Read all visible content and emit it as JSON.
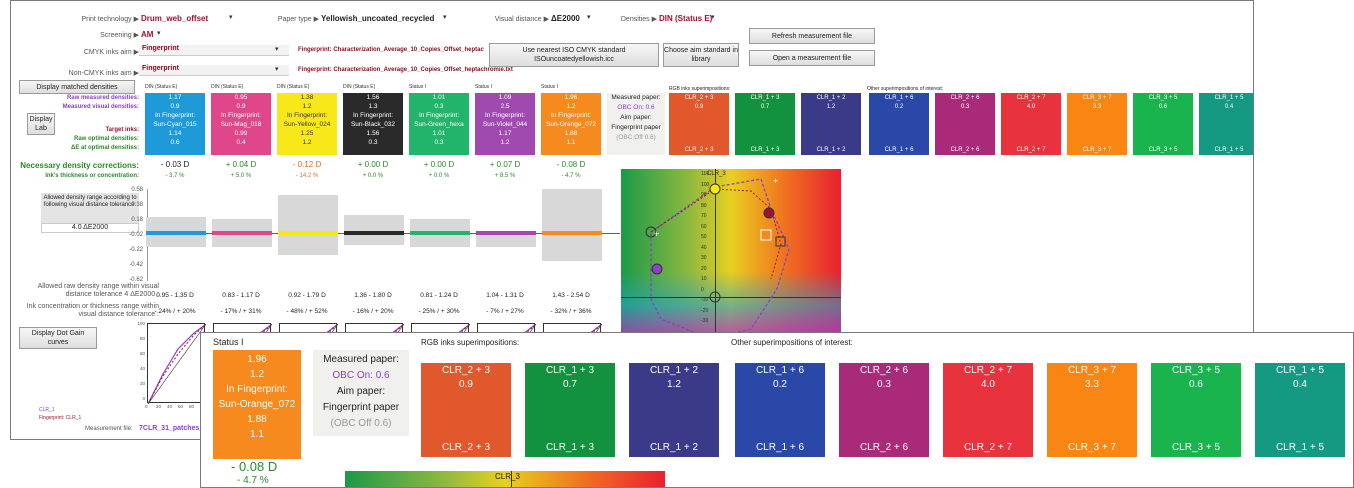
{
  "header": {
    "print_technology_label": "Print technology ▶",
    "print_technology_value": "Drum_web_offset",
    "paper_type_label": "Paper type ▶",
    "paper_type_value": "Yellowish_uncoated_recycled",
    "visual_distance_label": "Visual distance ▶",
    "visual_distance_value": "ΔE2000",
    "densities_label": "Densities ▶",
    "densities_value": "DIN (Status E)",
    "screening_label": "Screening ▶",
    "screening_value": "AM",
    "cmyk_aim_label": "CMYK inks aim ▶",
    "cmyk_aim_value": "Fingerprint",
    "cmyk_aim_note": "Fingerprint: Characterization_Average_10_Copies_Offset_heptac",
    "noncmyk_aim_label": "Non-CMYK inks aim ▶",
    "noncmyk_aim_value": "Fingerprint",
    "noncmyk_aim_note": "Fingerprint: Characterization_Average_10_Copies_Offset_heptachromie.txt"
  },
  "buttons": {
    "use_iso": "Use nearest ISO CMYK standard ISOuncoatedyellowish.icc",
    "choose_aim": "Choose aim standard in library",
    "refresh": "Refresh measurement file",
    "open": "Open a measurement file",
    "display_matched": "Display matched densities",
    "display_lab": "Display Lab",
    "display_dot_gain": "Display Dot Gain curves"
  },
  "row_labels": {
    "raw": "Raw measured densities:",
    "measured_visual": "Measured visual densities:",
    "target_inks": "Target inks:",
    "raw_optimal": "Raw optimal densities:",
    "de_optimal": "ΔE at optimal densities:",
    "necessary": "Necessary density corrections:",
    "thickness": "Ink's thickness or concentration:",
    "allowed_range_box": "Allowed density range according to following visual distance tolerance:",
    "tolerance": "4.0 ΔE2000",
    "allowed_raw": "Allowed raw density range within visual distance tolerance 4 ΔE2000 :",
    "concentration_range": "Ink concentration or thickness range within visual distance tolerance :",
    "measurement_file_label": "Measurement file:",
    "measurement_file_value": "7CLR_31_patches_s"
  },
  "inks": [
    {
      "hdr": "DIN (Status E)",
      "color": "#1e9ad8",
      "raw": "1.17",
      "vis": "0.9",
      "fp": "In Fingerprint:",
      "name": "Sun-Cyan_015",
      "opt": "1.14",
      "de": "0.6",
      "corr": "- 0.03 D",
      "corr_color": "#222",
      "pct": "- 3.7 %",
      "pct_color": "#2a8a2a",
      "range": "0.95 - 1.35 D",
      "conc": "- 24% / + 20%"
    },
    {
      "hdr": "DIN (Status E)",
      "color": "#e0468a",
      "raw": "0.95",
      "vis": "0.9",
      "fp": "In Fingerprint:",
      "name": "Sun-Mag_018",
      "opt": "0.99",
      "de": "0.4",
      "corr": "+ 0.04 D",
      "corr_color": "#2a8a2a",
      "pct": "+ 5.0 %",
      "pct_color": "#2a8a2a",
      "range": "0.83 - 1.17 D",
      "conc": "- 17% / + 31%"
    },
    {
      "hdr": "DIN (Status E)",
      "color": "#f8e81a",
      "raw": "1.38",
      "vis": "1.2",
      "fp": "In Fingerprint:",
      "name": "Sun-Yellow_024",
      "opt": "1.25",
      "de": "1.2",
      "corr": "- 0.12 D",
      "corr_color": "#e86a20",
      "pct": "- 14.2 %",
      "pct_color": "#e86a20",
      "range": "0.92 - 1.79 D",
      "conc": "- 48% / + 52%"
    },
    {
      "hdr": "DIN (Status E)",
      "color": "#2a2a2a",
      "raw": "1.56",
      "vis": "1.3",
      "fp": "In Fingerprint:",
      "name": "Sun-Black_032",
      "opt": "1.56",
      "de": "0.3",
      "corr": "+ 0.00 D",
      "corr_color": "#2a8a2a",
      "pct": "+ 0.0 %",
      "pct_color": "#2a8a2a",
      "range": "1.36 - 1.80 D",
      "conc": "- 16% / + 20%"
    },
    {
      "hdr": "Status I",
      "color": "#22b46a",
      "raw": "1.01",
      "vis": "0.3",
      "fp": "In Fingerprint:",
      "name": "Sun-Green_hexa",
      "opt": "1.01",
      "de": "0.3",
      "corr": "+ 0.00 D",
      "corr_color": "#2a8a2a",
      "pct": "+ 0.0 %",
      "pct_color": "#2a8a2a",
      "range": "0.81 - 1.24 D",
      "conc": "- 25% / + 30%"
    },
    {
      "hdr": "Status I",
      "color": "#a04ab0",
      "raw": "1.09",
      "vis": "2.5",
      "fp": "In Fingerprint:",
      "name": "Sun-Violet_044",
      "opt": "1.17",
      "de": "1.2",
      "corr": "+ 0.07 D",
      "corr_color": "#2a8a2a",
      "pct": "+ 8.5 %",
      "pct_color": "#2a8a2a",
      "range": "1.04 - 1.31 D",
      "conc": "- 7% / + 27%"
    },
    {
      "hdr": "Status I",
      "color": "#f78a1e",
      "raw": "1.96",
      "vis": "1.2",
      "fp": "In Fingerprint:",
      "name": "Sun-Orange_072",
      "opt": "1.88",
      "de": "1.1",
      "corr": "- 0.08 D",
      "corr_color": "#2a8a2a",
      "pct": "- 4.7 %",
      "pct_color": "#2a8a2a",
      "range": "1.43 - 2.54 D",
      "conc": "- 32% / + 36%"
    }
  ],
  "paper": {
    "measured_label": "Measured paper:",
    "measured_value": "OBC On: 0.6",
    "aim_label": "Aim paper:",
    "aim_value": "Fingerprint paper",
    "aim_obc": "(OBC Off 0.6)"
  },
  "rgb_heading": "RGB inks superimpositions:",
  "other_heading": "Other superimpositions of interest:",
  "superimpositions": [
    {
      "name": "CLR_2 + 3",
      "value": "0.9",
      "color": "#e0582c"
    },
    {
      "name": "CLR_1 + 3",
      "value": "0.7",
      "color": "#12923e"
    },
    {
      "name": "CLR_1 + 2",
      "value": "1.2",
      "color": "#3a3a88"
    },
    {
      "name": "CLR_1 + 6",
      "value": "0.2",
      "color": "#2a48a8"
    },
    {
      "name": "CLR_2 + 6",
      "value": "0.3",
      "color": "#a82a78"
    },
    {
      "name": "CLR_2 + 7",
      "value": "4.0",
      "color": "#e8323e"
    },
    {
      "name": "CLR_3 + 7",
      "value": "3.3",
      "color": "#f98512"
    },
    {
      "name": "CLR_3 + 5",
      "value": "0.6",
      "color": "#1ab44e"
    },
    {
      "name": "CLR_1 + 5",
      "value": "0.4",
      "color": "#149a82"
    }
  ],
  "yaxis_ticks": [
    "0.58",
    "0.38",
    "0.18",
    "-0.02",
    "-0.22",
    "-0.42",
    "-0.62"
  ],
  "ab_axis_ticks": [
    "110",
    "100",
    "90",
    "80",
    "70",
    "60",
    "50",
    "40",
    "30",
    "20",
    "10",
    "0",
    "-10",
    "-20",
    "-30"
  ],
  "clr3_label": "CLR_3",
  "dotgain": {
    "ticks_y": [
      "100",
      "80",
      "60",
      "40",
      "20",
      "0"
    ],
    "ticks_x": [
      "0",
      "20",
      "40",
      "60",
      "80",
      "100"
    ],
    "legend1": "CLR_1",
    "legend2": "Fingerprint: CLR_1"
  },
  "zoom": {
    "status": "Status I",
    "corr": "- 0.08 D",
    "pct": "- 4.7 %",
    "clr_label": "CLR_3",
    "ab_label": "110"
  },
  "colors": {
    "accent_red": "#a01030",
    "good_green": "#2a8a2a",
    "warn_orange": "#e86a20",
    "purple": "#8a40c8"
  }
}
